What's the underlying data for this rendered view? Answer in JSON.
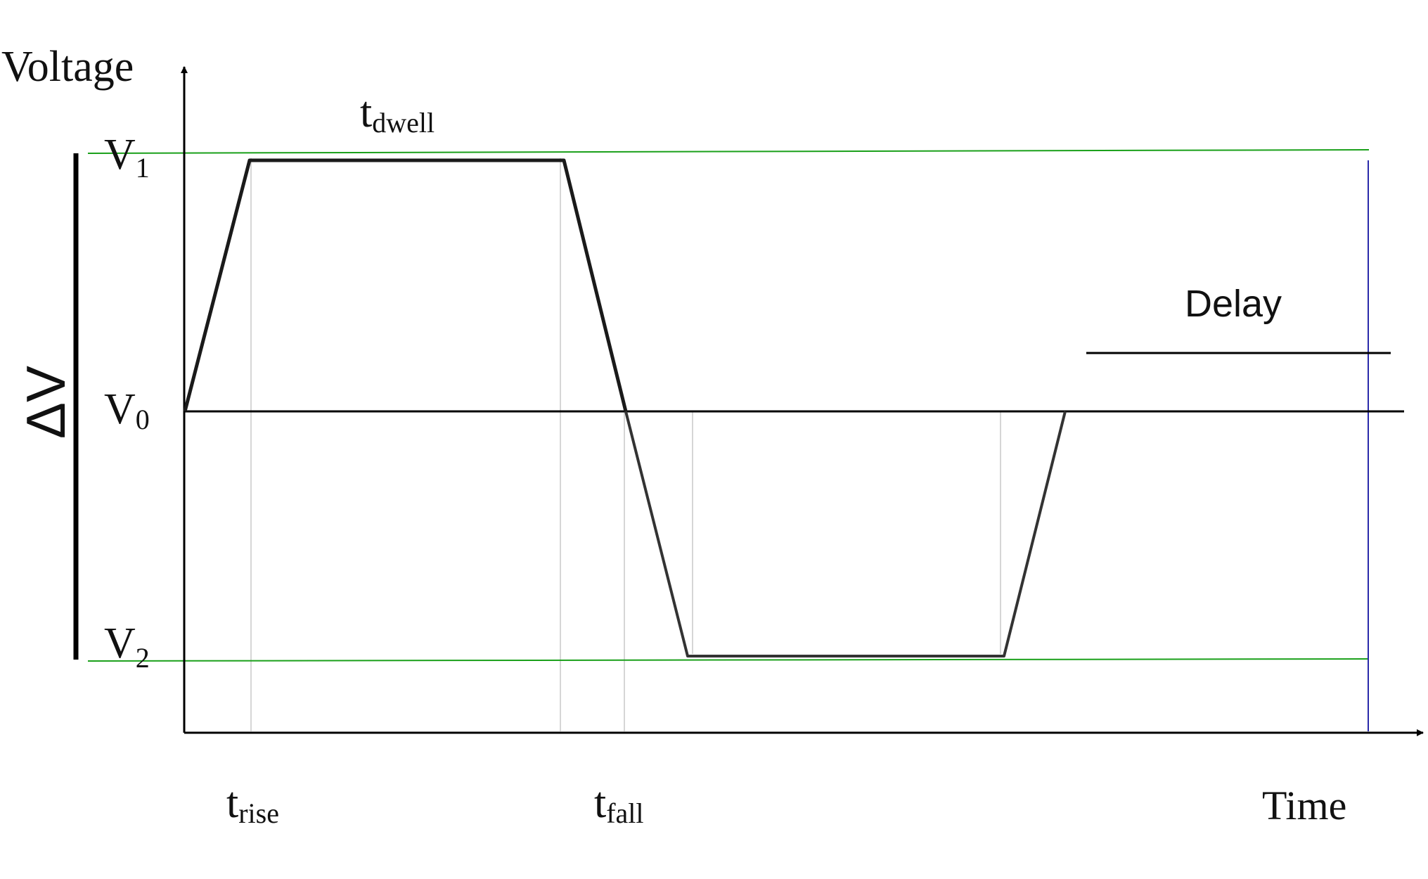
{
  "axes": {
    "y_label": "Voltage",
    "x_label": "Time"
  },
  "levels": {
    "v1": {
      "base": "V",
      "sub": "1"
    },
    "v0": {
      "base": "V",
      "sub": "0"
    },
    "v2": {
      "base": "V",
      "sub": "2"
    }
  },
  "delta_label": "ΔV",
  "time_labels": {
    "rise": {
      "base": "t",
      "sub": "rise"
    },
    "dwell": {
      "base": "t",
      "sub": "dwell"
    },
    "fall": {
      "base": "t",
      "sub": "fall"
    }
  },
  "delay_label": "Delay",
  "colors": {
    "axis": "#000000",
    "waveform": "#1a1a1a",
    "level_lines": "#1aa01a",
    "end_marker": "#2a2aaa",
    "guide_lines": "#c8c8c8"
  }
}
